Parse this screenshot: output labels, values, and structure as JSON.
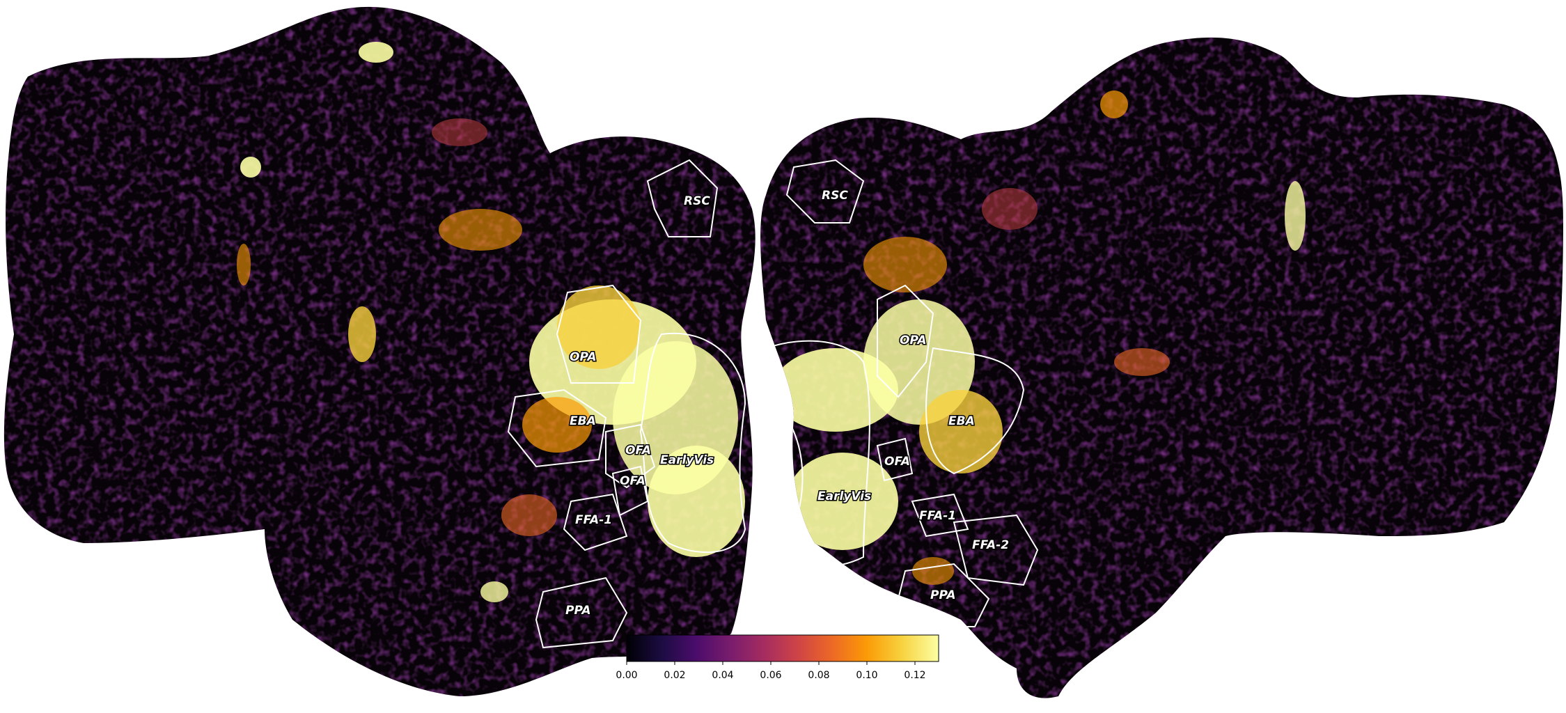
{
  "colorbar": {
    "colormap": "inferno",
    "range": [
      0.0,
      0.13
    ],
    "ticks": [
      "0.00",
      "0.02",
      "0.04",
      "0.06",
      "0.08",
      "0.10",
      "0.12"
    ],
    "colors": [
      "#000004",
      "#1b0c41",
      "#4a0c6b",
      "#781c6d",
      "#a52c60",
      "#cf4446",
      "#ed6925",
      "#fb9b06",
      "#f7d13d",
      "#fcffa4"
    ]
  },
  "hemispheres": {
    "left": {
      "roi_labels": [
        "RSC",
        "OPA",
        "EBA",
        "OFA",
        "EarlyVis",
        "OFA",
        "FFA-1",
        "PPA"
      ]
    },
    "right": {
      "roi_labels": [
        "RSC",
        "OPA",
        "EBA",
        "OFA",
        "EarlyVis",
        "FFA-1",
        "FFA-2",
        "PPA"
      ]
    }
  }
}
